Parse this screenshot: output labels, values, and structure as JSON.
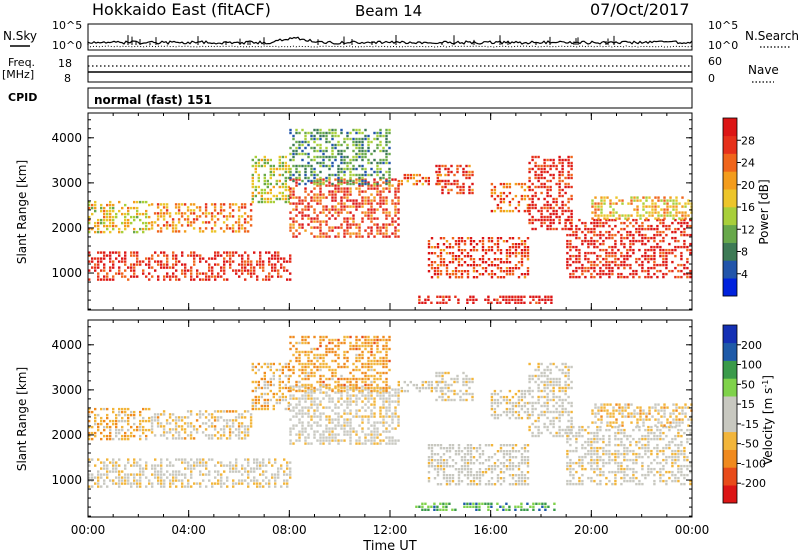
{
  "header": {
    "station": "Hokkaido East (fitACF)",
    "beam": "Beam 14",
    "date": "07/Oct/2017"
  },
  "summary": {
    "nsky_label": "N.Sky",
    "nsearch_label": "N.Search",
    "freq_label": "Freq.",
    "freq_unit": "[MHz]",
    "nave_label": "Nave",
    "cpid_label": "CPID",
    "cpid_text": "normal (fast) 151",
    "noise_ticks": [
      "10^5",
      "10^0"
    ],
    "freq_ticks": [
      "18",
      "8"
    ],
    "nave_ticks": [
      "60",
      "0"
    ]
  },
  "chart_data": [
    {
      "type": "heatmap",
      "title": "",
      "xlabel": "Time UT",
      "ylabel": "Slant Range [km]",
      "x_ticks": [
        "00:00",
        "04:00",
        "08:00",
        "12:00",
        "16:00",
        "20:00",
        "00:00"
      ],
      "xlim_hours": [
        0,
        24
      ],
      "ylim": [
        180,
        4550
      ],
      "y_ticks": [
        1000,
        2000,
        3000,
        4000
      ],
      "colorbar": {
        "label": "Power [dB]",
        "ticks": [
          "28",
          "24",
          "20",
          "16",
          "12",
          "8",
          "4"
        ],
        "colors": [
          "#0022dd",
          "#2255aa",
          "#3d7a55",
          "#67a84a",
          "#a8cf3a",
          "#ecc52a",
          "#f39c1c",
          "#f0651b",
          "#e6301a",
          "#dc1515"
        ]
      },
      "regions": [
        {
          "t": [
            0.0,
            8.1
          ],
          "r": [
            820,
            1480
          ],
          "level": 0.88
        },
        {
          "t": [
            0.0,
            2.5
          ],
          "r": [
            1900,
            2600
          ],
          "level": 0.55
        },
        {
          "t": [
            2.5,
            6.5
          ],
          "r": [
            1950,
            2550
          ],
          "level": 0.7
        },
        {
          "t": [
            6.5,
            8.0
          ],
          "r": [
            2600,
            3600
          ],
          "level": 0.5
        },
        {
          "t": [
            8.0,
            12.3
          ],
          "r": [
            1800,
            3100
          ],
          "level": 0.82
        },
        {
          "t": [
            8.0,
            12.0
          ],
          "r": [
            3000,
            4200
          ],
          "level": 0.3
        },
        {
          "t": [
            12.3,
            14.0
          ],
          "r": [
            3000,
            3200
          ],
          "level": 0.75
        },
        {
          "t": [
            13.8,
            15.3
          ],
          "r": [
            2800,
            3400
          ],
          "level": 0.85
        },
        {
          "t": [
            13.0,
            18.5
          ],
          "r": [
            350,
            500
          ],
          "level": 0.95
        },
        {
          "t": [
            13.5,
            17.5
          ],
          "r": [
            900,
            1800
          ],
          "level": 0.85
        },
        {
          "t": [
            16.0,
            17.5
          ],
          "r": [
            2400,
            3000
          ],
          "level": 0.75
        },
        {
          "t": [
            17.5,
            19.2
          ],
          "r": [
            2000,
            3600
          ],
          "level": 0.9
        },
        {
          "t": [
            19.0,
            24.0
          ],
          "r": [
            900,
            2200
          ],
          "level": 0.9
        },
        {
          "t": [
            20.0,
            24.0
          ],
          "r": [
            2200,
            2700
          ],
          "level": 0.6
        }
      ]
    },
    {
      "type": "heatmap",
      "title": "",
      "xlabel": "Time UT",
      "ylabel": "Slant Range [km]",
      "x_ticks": [
        "00:00",
        "04:00",
        "08:00",
        "12:00",
        "16:00",
        "20:00",
        "00:00"
      ],
      "xlim_hours": [
        0,
        24
      ],
      "ylim": [
        180,
        4550
      ],
      "y_ticks": [
        1000,
        2000,
        3000,
        4000
      ],
      "colorbar": {
        "label": "Velocity [m s",
        "label_sup": "-1",
        "label_end": "]",
        "ticks": [
          "200",
          "100",
          "50",
          "15",
          "-15",
          "-50",
          "-100",
          "-200"
        ],
        "colors": [
          "#dc1515",
          "#e84b1a",
          "#f08a1e",
          "#f2b53a",
          "#c8c8c0",
          "#c8c8c0",
          "#7fd24a",
          "#3a9a4a",
          "#1e5aa8",
          "#1430b4"
        ]
      },
      "regions": [
        {
          "t": [
            0.0,
            8.1
          ],
          "r": [
            820,
            1480
          ],
          "level": 0.45
        },
        {
          "t": [
            0.0,
            2.5
          ],
          "r": [
            1900,
            2600
          ],
          "level": 0.35
        },
        {
          "t": [
            2.5,
            6.5
          ],
          "r": [
            1950,
            2550
          ],
          "level": 0.4
        },
        {
          "t": [
            6.5,
            8.0
          ],
          "r": [
            2600,
            3600
          ],
          "level": 0.35
        },
        {
          "t": [
            8.0,
            12.3
          ],
          "r": [
            1800,
            3100
          ],
          "level": 0.47
        },
        {
          "t": [
            8.0,
            12.0
          ],
          "r": [
            3000,
            4200
          ],
          "level": 0.3
        },
        {
          "t": [
            12.3,
            14.0
          ],
          "r": [
            3000,
            3200
          ],
          "level": 0.45
        },
        {
          "t": [
            13.8,
            15.3
          ],
          "r": [
            2800,
            3400
          ],
          "level": 0.45
        },
        {
          "t": [
            13.0,
            18.5
          ],
          "r": [
            350,
            500
          ],
          "level": 0.72
        },
        {
          "t": [
            13.5,
            17.5
          ],
          "r": [
            900,
            1800
          ],
          "level": 0.48
        },
        {
          "t": [
            16.0,
            17.5
          ],
          "r": [
            2400,
            3000
          ],
          "level": 0.45
        },
        {
          "t": [
            17.5,
            19.2
          ],
          "r": [
            2000,
            3600
          ],
          "level": 0.47
        },
        {
          "t": [
            19.0,
            24.0
          ],
          "r": [
            900,
            2200
          ],
          "level": 0.46
        },
        {
          "t": [
            20.0,
            24.0
          ],
          "r": [
            2200,
            2700
          ],
          "level": 0.38
        }
      ]
    }
  ]
}
